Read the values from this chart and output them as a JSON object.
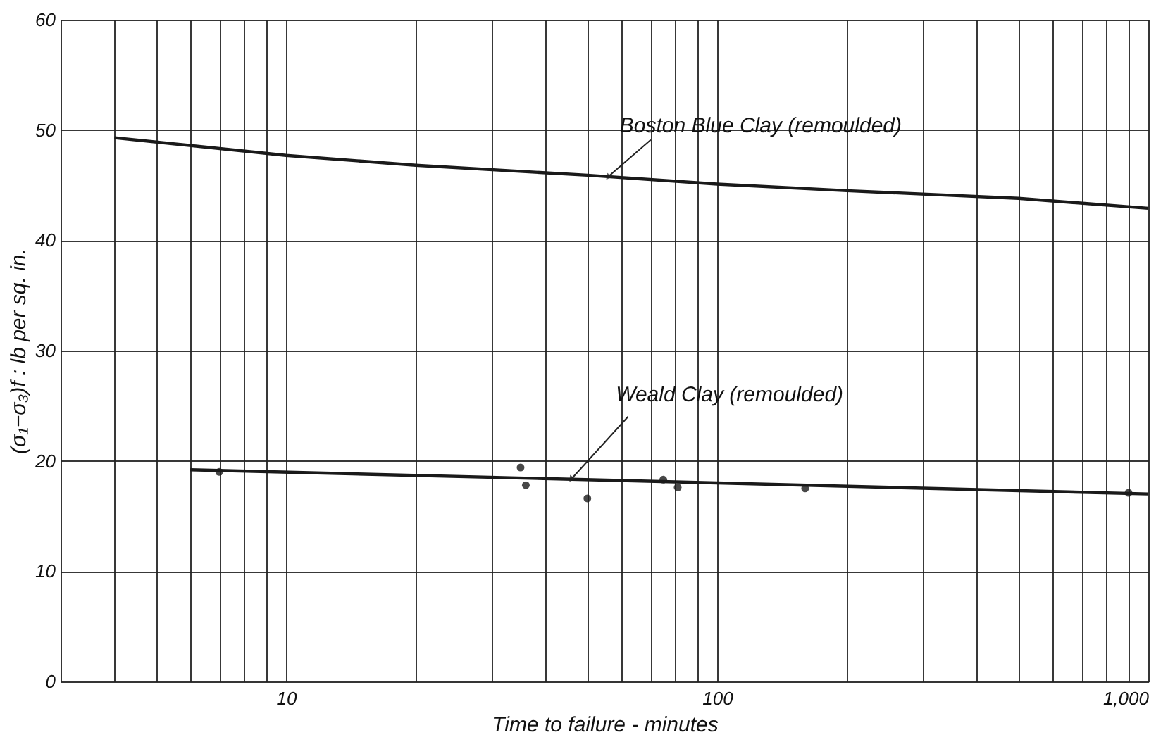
{
  "chart_data": {
    "type": "line",
    "xlabel": "Time to failure - minutes",
    "ylabel": "(σ₁−σ₃)f : lb per sq. in.",
    "log": "x",
    "grid": true,
    "line_style": "solid",
    "marker": "none",
    "xlim": [
      3,
      1000
    ],
    "ylim": [
      0,
      60
    ],
    "xticks": [
      {
        "value": 3,
        "label": null
      },
      {
        "value": 4,
        "label": null
      },
      {
        "value": 5,
        "label": null
      },
      {
        "value": 6,
        "label": null
      },
      {
        "value": 7,
        "label": null
      },
      {
        "value": 8,
        "label": null
      },
      {
        "value": 9,
        "label": null
      },
      10,
      {
        "value": 20,
        "label": null
      },
      {
        "value": 30,
        "label": null
      },
      {
        "value": 40,
        "label": null
      },
      {
        "value": 50,
        "label": null
      },
      {
        "value": 60,
        "label": null
      },
      {
        "value": 70,
        "label": null
      },
      {
        "value": 80,
        "label": null
      },
      {
        "value": 90,
        "label": null
      },
      100,
      {
        "value": 200,
        "label": null
      },
      {
        "value": 300,
        "label": null
      },
      {
        "value": 400,
        "label": null
      },
      {
        "value": 500,
        "label": null
      },
      {
        "value": 600,
        "label": null
      },
      {
        "value": 700,
        "label": null
      },
      {
        "value": 800,
        "label": null
      },
      {
        "value": 900,
        "label": null
      },
      {
        "value": 1000,
        "label": "1,000"
      }
    ],
    "yticks": [
      0,
      10,
      20,
      30,
      40,
      50,
      60
    ],
    "series": [
      {
        "color": "#1a1a1a",
        "x": [
          4,
          10,
          20,
          50,
          100,
          200,
          500,
          1000
        ],
        "values": [
          49.3,
          47.7,
          46.8,
          45.9,
          45.1,
          44.5,
          43.8,
          42.9
        ]
      },
      {
        "color": "#1a1a1a",
        "x": [
          6,
          100,
          1000
        ],
        "values": [
          19.2,
          18.0,
          17.0
        ]
      },
      {
        "type": "scatter",
        "color": "#1a1a1a",
        "marker": "circle",
        "x": [
          7,
          35,
          36,
          50,
          75,
          81,
          160,
          900
        ],
        "values": [
          19.0,
          19.4,
          17.8,
          16.6,
          18.3,
          17.6,
          17.5,
          17.1
        ]
      }
    ],
    "annotations": [
      {
        "text": "Boston Blue Clay (remoulded)",
        "x": 56,
        "y": 45.8
      },
      {
        "text": "Weald Clay (remoulded)",
        "x": 46,
        "y": 18.4
      }
    ]
  }
}
